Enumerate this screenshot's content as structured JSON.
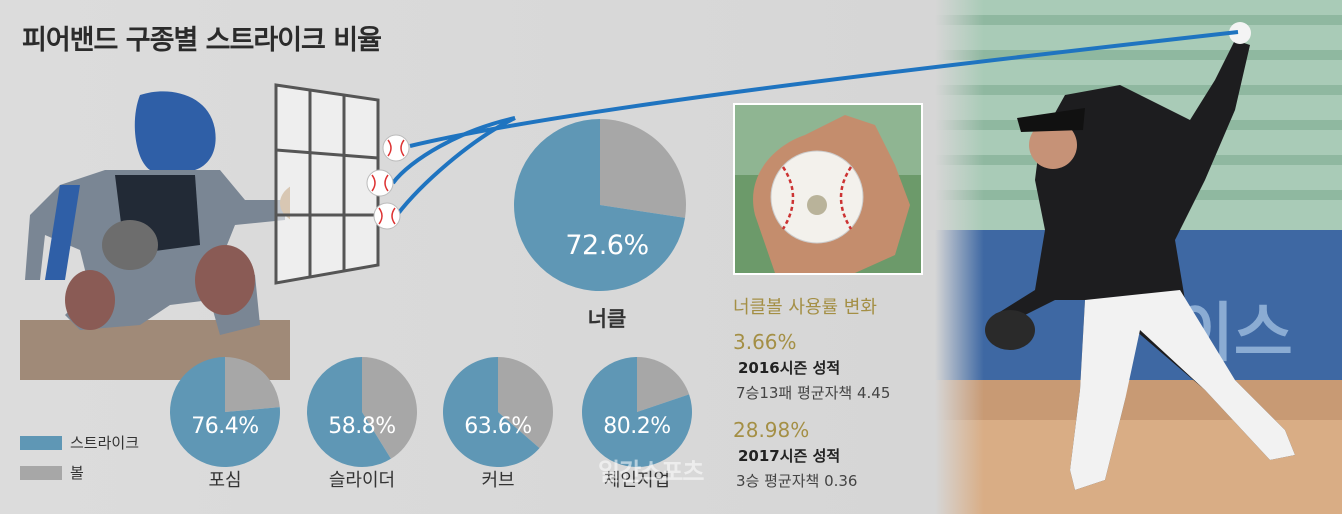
{
  "title": "피어밴드 구종별 스트라이크 비율",
  "legend": [
    {
      "label": "스트라이크",
      "color": "#5f97b5"
    },
    {
      "label": "볼",
      "color": "#a7a7a7"
    }
  ],
  "colors": {
    "strike": "#5f97b5",
    "ball": "#a7a7a7",
    "pitch_line": "#1f74c0",
    "accent_gold": "#a48f45"
  },
  "chart_data": {
    "type": "pie",
    "series_names": [
      "스트라이크",
      "볼"
    ],
    "pitches": [
      {
        "label": "너클",
        "strike_pct": 72.6,
        "strike_text": "72.6%"
      },
      {
        "label": "포심",
        "strike_pct": 76.4,
        "strike_text": "76.4%"
      },
      {
        "label": "슬라이더",
        "strike_pct": 58.8,
        "strike_text": "58.8%"
      },
      {
        "label": "커브",
        "strike_pct": 63.6,
        "strike_text": "63.6%"
      },
      {
        "label": "체인지업",
        "strike_pct": 80.2,
        "strike_text": "80.2%"
      }
    ]
  },
  "knuckle_usage": {
    "title": "너클볼 사용률 변화",
    "seasons": [
      {
        "rate": "3.66%",
        "season": "2016시즌 성적",
        "record": "7승13패 평균자책 4.45"
      },
      {
        "rate": "28.98%",
        "season": "2017시즌 성적",
        "record": "3승 평균자책 0.36"
      }
    ]
  },
  "watermark": "일간스포츠"
}
